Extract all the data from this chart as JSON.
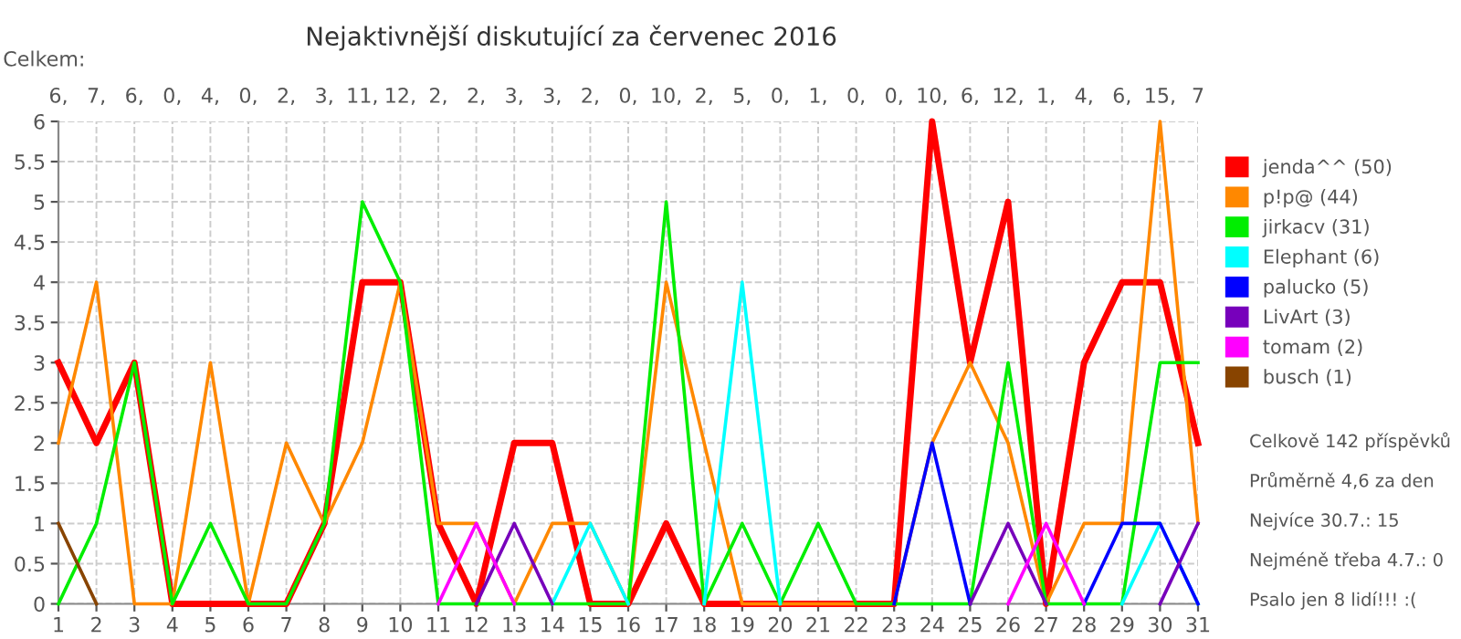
{
  "chart_data": {
    "type": "line",
    "title": "Nejaktivnější diskutující za červenec 2016",
    "x": [
      1,
      2,
      3,
      4,
      5,
      6,
      7,
      8,
      9,
      10,
      11,
      12,
      13,
      14,
      15,
      16,
      17,
      18,
      19,
      20,
      21,
      22,
      23,
      24,
      25,
      26,
      27,
      28,
      29,
      30,
      31
    ],
    "series": [
      {
        "name": "jenda^^ (50)",
        "color": "#ff0000",
        "values": [
          3,
          2,
          3,
          0,
          0,
          0,
          0,
          1,
          4,
          4,
          1,
          0,
          2,
          2,
          0,
          0,
          1,
          0,
          0,
          0,
          0,
          0,
          0,
          6,
          3,
          5,
          0,
          3,
          4,
          4,
          2
        ]
      },
      {
        "name": "p!p@ (44)",
        "color": "#ff8800",
        "values": [
          2,
          4,
          0,
          0,
          3,
          0,
          2,
          1,
          2,
          4,
          1,
          1,
          0,
          1,
          1,
          0,
          4,
          2,
          0,
          0,
          0,
          0,
          0,
          2,
          3,
          2,
          0,
          1,
          1,
          6,
          1
        ]
      },
      {
        "name": "jirkacv (31)",
        "color": "#00ee00",
        "values": [
          0,
          1,
          3,
          0,
          1,
          0,
          0,
          1,
          5,
          4,
          0,
          0,
          0,
          0,
          0,
          0,
          5,
          0,
          1,
          0,
          1,
          0,
          0,
          0,
          0,
          3,
          0,
          0,
          0,
          3,
          3
        ]
      },
      {
        "name": "Elephant (6)",
        "color": "#00ffff",
        "values": [
          null,
          null,
          null,
          null,
          null,
          null,
          null,
          null,
          null,
          null,
          null,
          null,
          null,
          0,
          1,
          0,
          null,
          0,
          4,
          0,
          null,
          null,
          null,
          null,
          null,
          null,
          null,
          null,
          0,
          1,
          0
        ]
      },
      {
        "name": "palucko (5)",
        "color": "#0000ff",
        "values": [
          null,
          null,
          null,
          null,
          null,
          null,
          null,
          null,
          null,
          null,
          null,
          null,
          null,
          null,
          null,
          null,
          null,
          null,
          null,
          null,
          null,
          null,
          0,
          2,
          0,
          null,
          null,
          0,
          1,
          1,
          0
        ]
      },
      {
        "name": "LivArt (3)",
        "color": "#7700bb",
        "values": [
          null,
          null,
          null,
          null,
          null,
          null,
          null,
          null,
          null,
          null,
          null,
          0,
          1,
          0,
          null,
          null,
          null,
          null,
          null,
          null,
          null,
          null,
          null,
          null,
          0,
          1,
          0,
          null,
          null,
          0,
          1
        ]
      },
      {
        "name": "tomam (2)",
        "color": "#ff00ff",
        "values": [
          null,
          null,
          null,
          null,
          null,
          null,
          null,
          null,
          null,
          null,
          0,
          1,
          0,
          null,
          null,
          null,
          null,
          null,
          null,
          null,
          null,
          null,
          null,
          null,
          null,
          0,
          1,
          0,
          null,
          null,
          null
        ]
      },
      {
        "name": "busch (1)",
        "color": "#884400",
        "values": [
          1,
          0,
          null,
          null,
          null,
          null,
          null,
          null,
          null,
          null,
          null,
          null,
          null,
          null,
          null,
          null,
          null,
          null,
          null,
          null,
          null,
          null,
          null,
          null,
          null,
          null,
          null,
          null,
          null,
          null,
          null
        ]
      }
    ],
    "totals": [
      "6,",
      "7,",
      "6,",
      "0,",
      "4,",
      "0,",
      "2,",
      "3,",
      "11,",
      "12,",
      "2,",
      "2,",
      "3,",
      "3,",
      "2,",
      "0,",
      "10,",
      "2,",
      "5,",
      "0,",
      "1,",
      "0,",
      "0,",
      "10,",
      "6,",
      "12,",
      "1,",
      "4,",
      "6,",
      "15,",
      "7"
    ],
    "annotations": [
      "Celkem:",
      "Celkově 142 příspěvků",
      "Průměrně 4,6 za den",
      "Nejvíce 30.7.: 15",
      "Nejméně třeba 4.7.: 0",
      "Psalo jen 8 lidí!!! :("
    ],
    "xlim": [
      1,
      31
    ],
    "xticks": [
      1,
      2,
      3,
      4,
      5,
      6,
      7,
      8,
      9,
      10,
      11,
      12,
      13,
      14,
      15,
      16,
      17,
      18,
      19,
      20,
      21,
      22,
      23,
      24,
      25,
      26,
      27,
      28,
      29,
      30,
      31
    ],
    "ylim": [
      0,
      6
    ],
    "yticks": [
      0,
      0.5,
      1,
      1.5,
      2,
      2.5,
      3,
      3.5,
      4,
      4.5,
      5,
      5.5,
      6
    ],
    "grid": true,
    "legend": "right",
    "marker": "none",
    "line_style": "solid"
  }
}
